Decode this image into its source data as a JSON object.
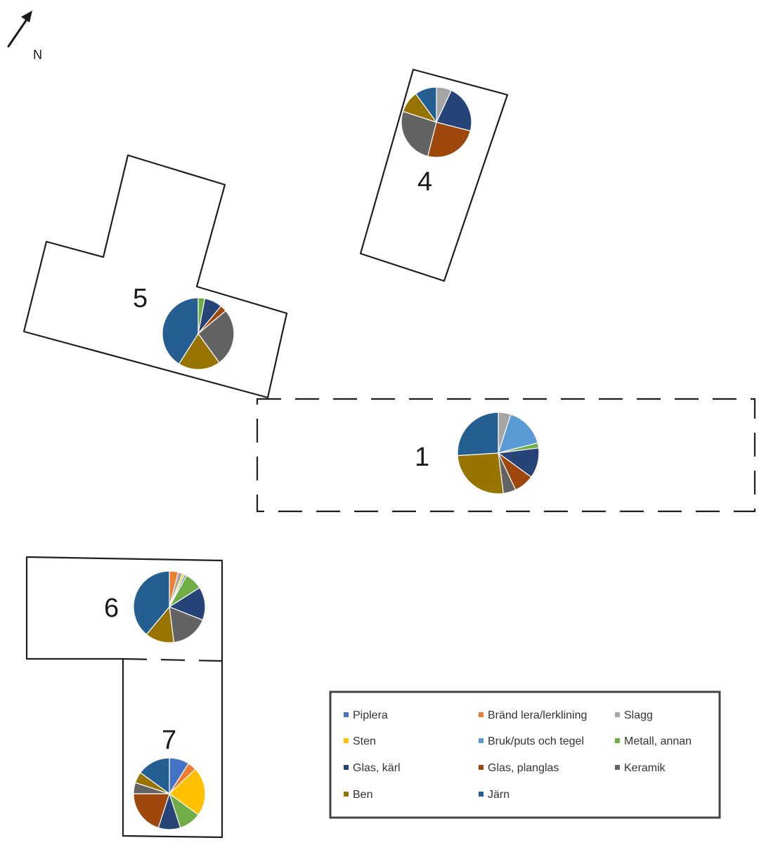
{
  "north": {
    "label": "N"
  },
  "categories": [
    {
      "name": "Piplera",
      "color": "#4472C4"
    },
    {
      "name": "Bränd lera/lerklining",
      "color": "#ED7D31"
    },
    {
      "name": "Slagg",
      "color": "#A5A5A5"
    },
    {
      "name": "Sten",
      "color": "#FFC000"
    },
    {
      "name": "Bruk/puts och tegel",
      "color": "#5B9BD5"
    },
    {
      "name": "Metall, annan",
      "color": "#70AD47"
    },
    {
      "name": "Glas, kärl",
      "color": "#264478"
    },
    {
      "name": "Glas, planglas",
      "color": "#9E480E"
    },
    {
      "name": "Keramik",
      "color": "#636363"
    },
    {
      "name": "Ben",
      "color": "#997300"
    },
    {
      "name": "Järn",
      "color": "#255E91"
    }
  ],
  "chart_data": [
    {
      "type": "pie",
      "label": "1",
      "categories": [
        "Piplera",
        "Bränd lera/lerklining",
        "Slagg",
        "Sten",
        "Bruk/puts och tegel",
        "Metall, annan",
        "Glas, kärl",
        "Glas, planglas",
        "Keramik",
        "Ben",
        "Järn"
      ],
      "values": [
        0,
        0,
        5,
        0,
        16,
        2,
        12,
        8,
        5,
        26,
        26
      ]
    },
    {
      "type": "pie",
      "label": "4",
      "categories": [
        "Piplera",
        "Bränd lera/lerklining",
        "Slagg",
        "Sten",
        "Bruk/puts och tegel",
        "Metall, annan",
        "Glas, kärl",
        "Glas, planglas",
        "Keramik",
        "Ben",
        "Järn"
      ],
      "values": [
        0,
        0,
        7,
        0,
        0,
        0,
        22,
        25,
        26,
        10,
        10
      ]
    },
    {
      "type": "pie",
      "label": "5",
      "categories": [
        "Piplera",
        "Bränd lera/lerklining",
        "Slagg",
        "Sten",
        "Bruk/puts och tegel",
        "Metall, annan",
        "Glas, kärl",
        "Glas, planglas",
        "Keramik",
        "Ben",
        "Järn"
      ],
      "values": [
        0,
        0,
        0,
        0,
        0,
        3,
        8,
        3,
        26,
        19,
        41
      ]
    },
    {
      "type": "pie",
      "label": "6",
      "categories": [
        "Piplera",
        "Bränd lera/lerklining",
        "Slagg",
        "Sten",
        "Bruk/puts och tegel",
        "Metall, annan",
        "Glas, kärl",
        "Glas, planglas",
        "Keramik",
        "Ben",
        "Järn"
      ],
      "values": [
        0,
        4,
        2,
        1,
        1,
        8,
        15,
        0,
        17,
        13,
        39
      ]
    },
    {
      "type": "pie",
      "label": "7",
      "categories": [
        "Piplera",
        "Bränd lera/lerklining",
        "Slagg",
        "Sten",
        "Bruk/puts och tegel",
        "Metall, annan",
        "Glas, kärl",
        "Glas, planglas",
        "Keramik",
        "Ben",
        "Järn"
      ],
      "values": [
        9,
        4,
        0,
        22,
        0,
        10,
        10,
        20,
        5,
        5,
        15
      ]
    }
  ]
}
